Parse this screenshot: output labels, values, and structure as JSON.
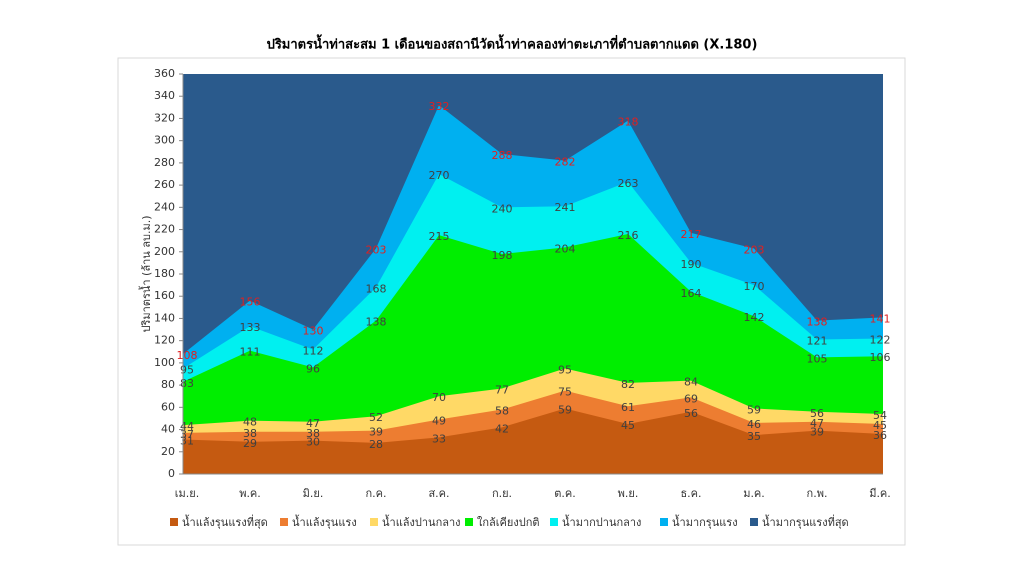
{
  "chart_data": {
    "type": "area",
    "title": "ปริมาตรน้ำท่าสะสม 1 เดือนของสถานีวัดน้ำท่าคลองท่าตะเภาที่ตำบลตากแดด (X.180)",
    "y_label": "ปริมาตรน้ำ (ล้าน ลบ.ม.)",
    "categories": [
      "เม.ย.",
      "พ.ค.",
      "มิ.ย.",
      "ก.ค.",
      "ส.ค.",
      "ก.ย.",
      "ต.ค.",
      "พ.ย.",
      "ธ.ค.",
      "ม.ค.",
      "ก.พ.",
      "มี.ค."
    ],
    "ylim": [
      0,
      360
    ],
    "yticks": [
      0,
      20,
      40,
      60,
      80,
      100,
      120,
      140,
      160,
      180,
      200,
      220,
      240,
      260,
      280,
      300,
      320,
      340,
      360
    ],
    "top_band": {
      "name": "น้ำมากรุนแรงที่สุด",
      "color": "#2a5a8c"
    },
    "series": [
      {
        "name": "น้ำแล้งรุนแรงที่สุด",
        "color": "#c55a11",
        "label_color": "#404040",
        "values": [
          31,
          29,
          30,
          28,
          33,
          42,
          59,
          45,
          56,
          35,
          39,
          36
        ]
      },
      {
        "name": "น้ำแล้งรุนแรง",
        "color": "#ed7d31",
        "label_color": "#404040",
        "values": [
          37,
          38,
          38,
          39,
          49,
          58,
          75,
          61,
          69,
          46,
          47,
          45
        ]
      },
      {
        "name": "น้ำแล้งปานกลาง",
        "color": "#ffd966",
        "label_color": "#404040",
        "values": [
          44,
          48,
          47,
          52,
          70,
          77,
          95,
          82,
          84,
          59,
          56,
          54
        ]
      },
      {
        "name": "ใกล้เคียงปกติ",
        "color": "#00ee00",
        "label_color": "#404040",
        "values": [
          83,
          111,
          96,
          138,
          215,
          198,
          204,
          216,
          164,
          142,
          105,
          106
        ]
      },
      {
        "name": "น้ำมากปานกลาง",
        "color": "#00f0f0",
        "label_color": "#404040",
        "values": [
          95,
          133,
          112,
          168,
          270,
          240,
          241,
          263,
          190,
          170,
          121,
          122
        ]
      },
      {
        "name": "น้ำมากรุนแรง",
        "color": "#00b0f0",
        "label_color": "#e02020",
        "values": [
          108,
          156,
          130,
          203,
          332,
          288,
          282,
          318,
          217,
          203,
          138,
          141
        ]
      }
    ]
  }
}
